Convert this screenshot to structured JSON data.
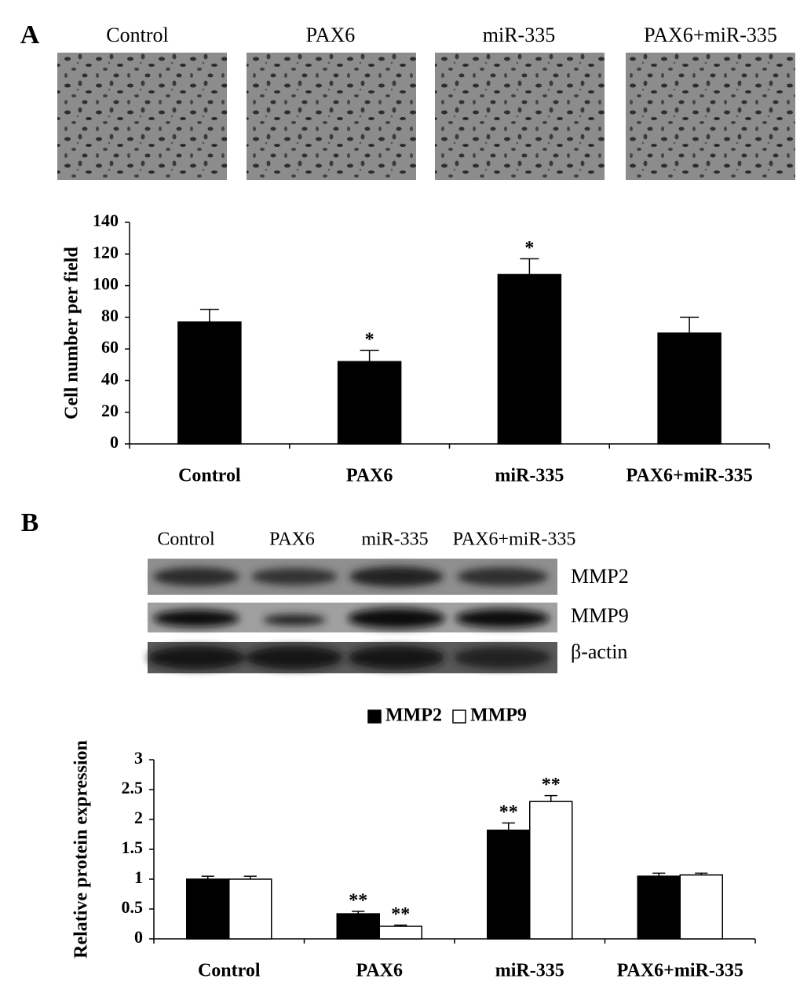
{
  "panels": {
    "a": "A",
    "b": "B"
  },
  "images": {
    "labels": [
      "Control",
      "PAX6",
      "miR-335",
      "PAX6+miR-335"
    ]
  },
  "blot": {
    "lane_labels": [
      "Control",
      "PAX6",
      "miR-335",
      "PAX6+miR-335"
    ],
    "row_labels": [
      "MMP2",
      "MMP9",
      "β-actin"
    ]
  },
  "chart_data": [
    {
      "type": "bar",
      "y_label": "Cell number per field",
      "categories": [
        "Control",
        "PAX6",
        "miR-335",
        "PAX6+miR-335"
      ],
      "values": [
        77,
        52,
        107,
        70
      ],
      "errors": [
        8,
        7,
        10,
        10
      ],
      "annotations": [
        null,
        "*",
        "*",
        null
      ],
      "color": "#000000",
      "ylim": [
        0,
        140
      ],
      "yticks": [
        0,
        20,
        40,
        60,
        80,
        100,
        120,
        140
      ]
    },
    {
      "type": "bar",
      "y_label": "Relative protein expression",
      "categories": [
        "Control",
        "PAX6",
        "miR-335",
        "PAX6+miR-335"
      ],
      "series": [
        {
          "name": "MMP2",
          "color": "#000000",
          "values": [
            1.0,
            0.42,
            1.82,
            1.05
          ],
          "errors": [
            0.05,
            0.04,
            0.12,
            0.05
          ],
          "annotations": [
            null,
            "**",
            "**",
            null
          ]
        },
        {
          "name": "MMP9",
          "color": "#ffffff",
          "values": [
            1.0,
            0.21,
            2.3,
            1.07
          ],
          "errors": [
            0.05,
            0.02,
            0.1,
            0.03
          ],
          "annotations": [
            null,
            "**",
            "**",
            null
          ]
        }
      ],
      "legend": "top",
      "ylim": [
        0,
        3
      ],
      "yticks": [
        0,
        0.5,
        1,
        1.5,
        2,
        2.5,
        3
      ]
    }
  ]
}
